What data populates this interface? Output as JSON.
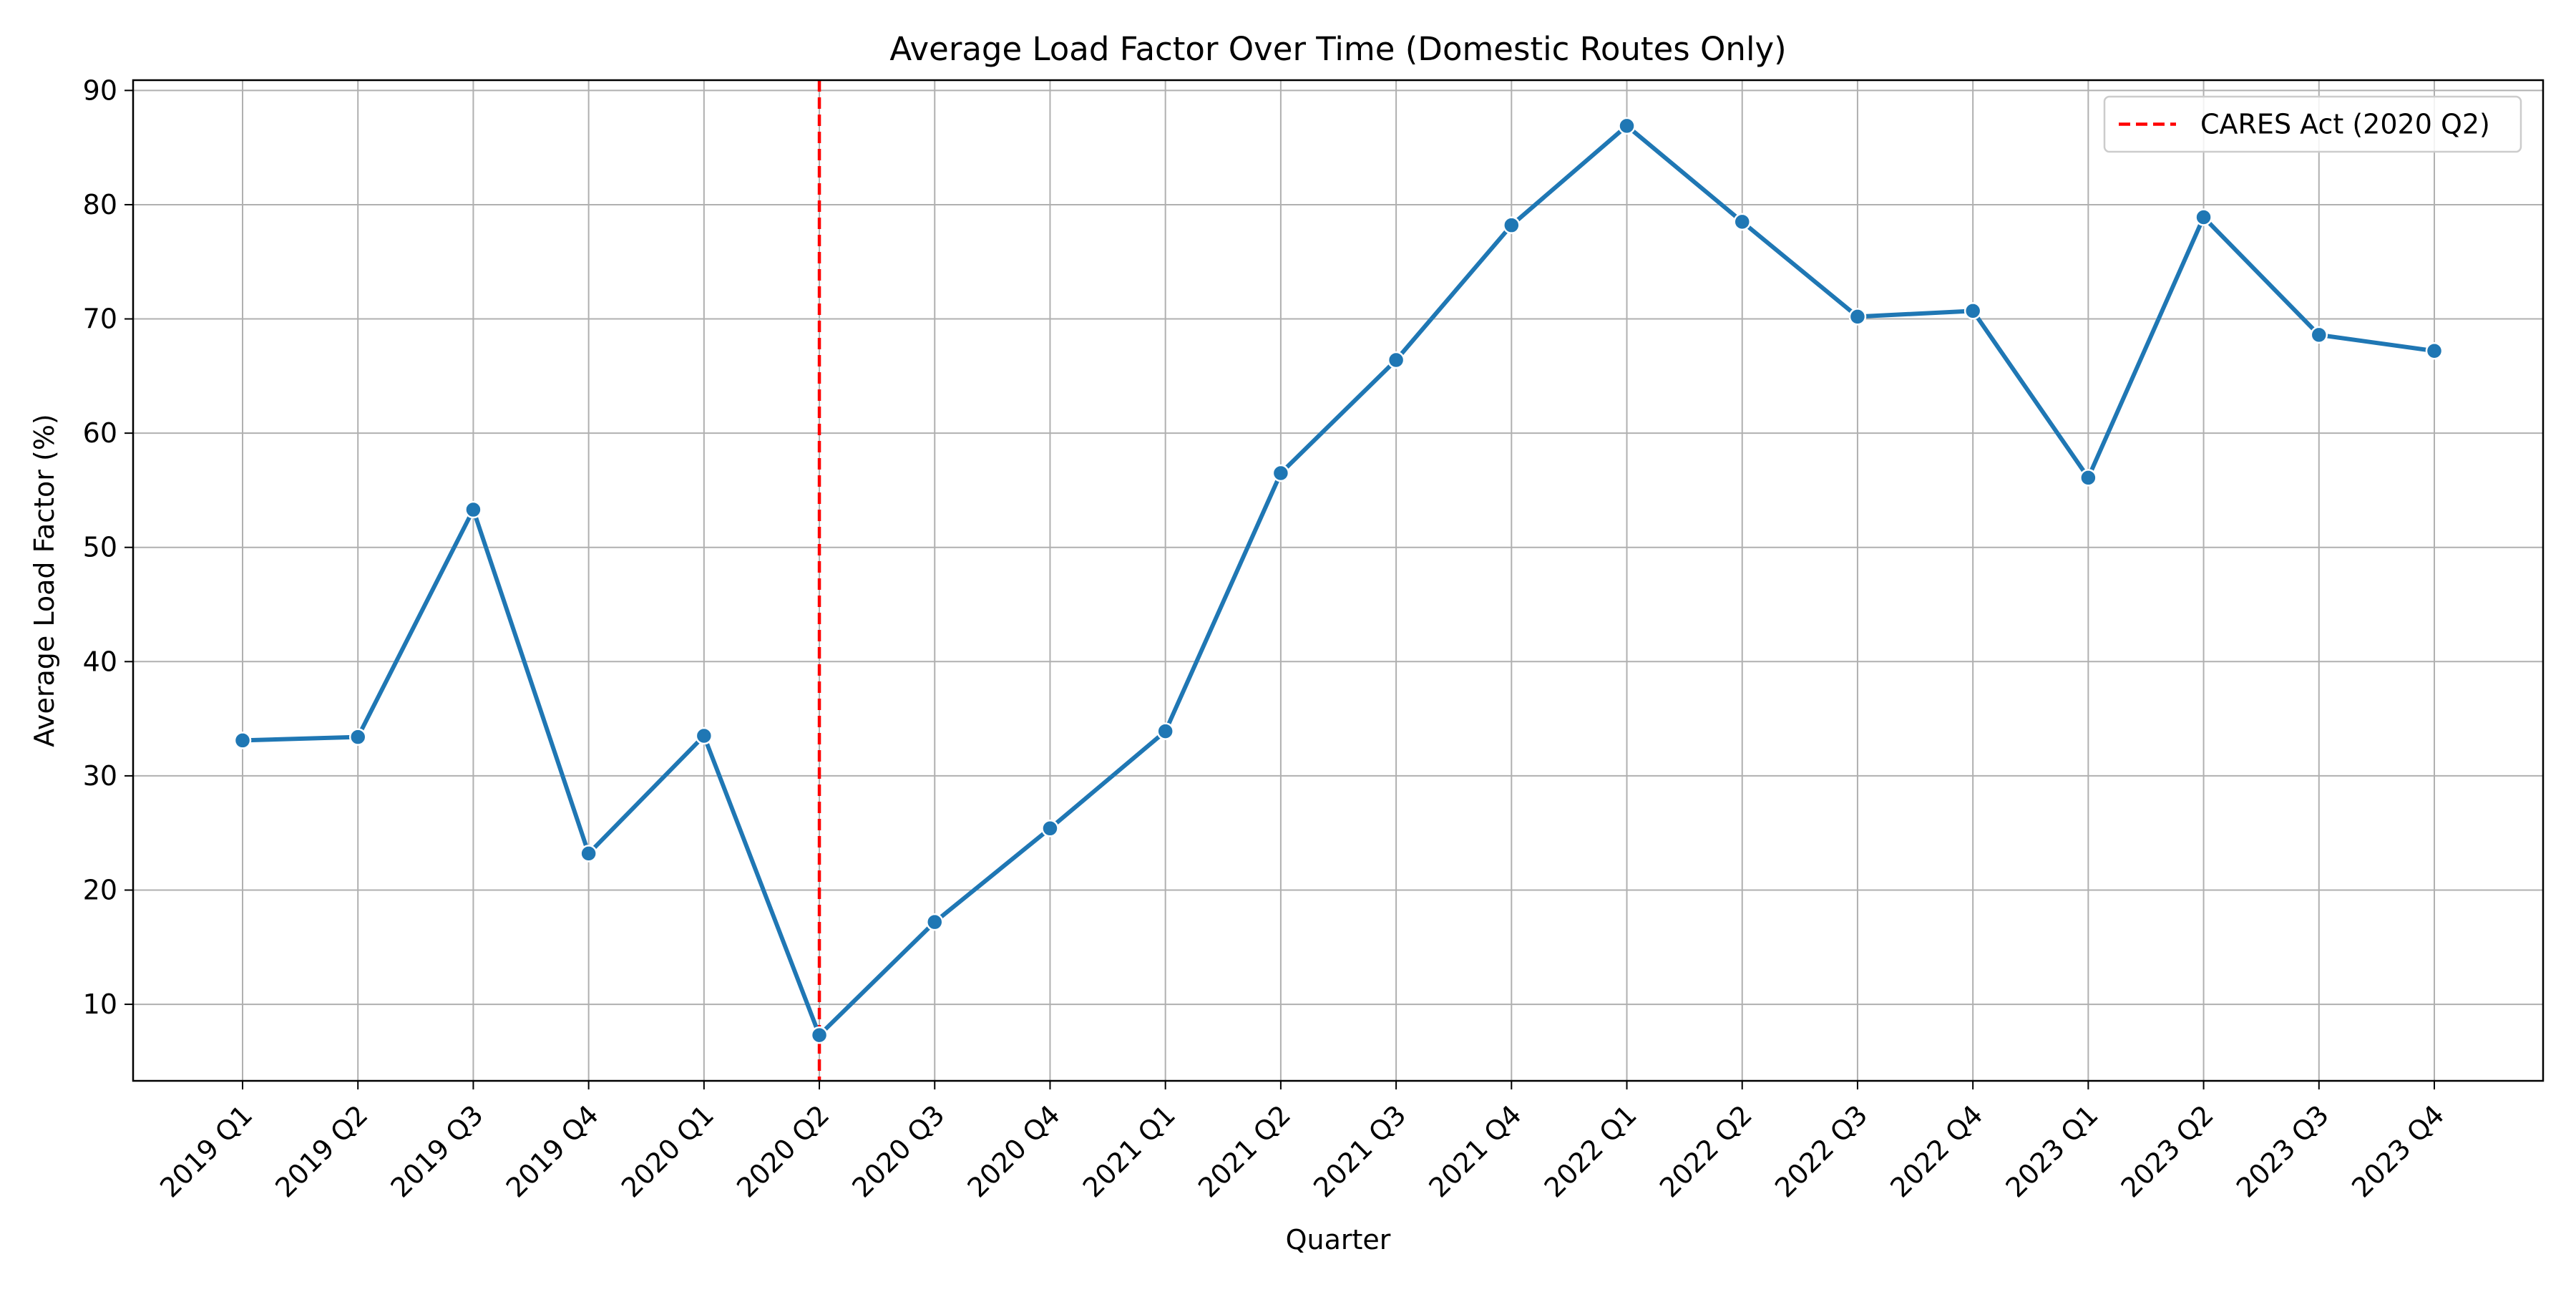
{
  "chart_data": {
    "type": "line",
    "title": "Average Load Factor Over Time (Domestic Routes Only)",
    "xlabel": "Quarter",
    "ylabel": "Average Load Factor (%)",
    "categories": [
      "2019 Q1",
      "2019 Q2",
      "2019 Q3",
      "2019 Q4",
      "2020 Q1",
      "2020 Q2",
      "2020 Q3",
      "2020 Q4",
      "2021 Q1",
      "2021 Q2",
      "2021 Q3",
      "2021 Q4",
      "2022 Q1",
      "2022 Q2",
      "2022 Q3",
      "2022 Q4",
      "2023 Q1",
      "2023 Q2",
      "2023 Q3",
      "2023 Q4"
    ],
    "series": [
      {
        "values": [
          33.1,
          33.4,
          53.3,
          23.2,
          33.5,
          7.3,
          17.2,
          25.4,
          33.9,
          56.5,
          66.4,
          78.2,
          86.9,
          78.5,
          70.2,
          70.7,
          56.1,
          78.9,
          68.6,
          67.2
        ],
        "color": "#1f77b4"
      }
    ],
    "ylim": [
      3.3,
      90.9
    ],
    "yticks": [
      10,
      20,
      30,
      40,
      50,
      60,
      70,
      80,
      90
    ],
    "grid": true,
    "legend": {
      "position": "top-right",
      "entries": [
        {
          "label": "CARES Act (2020 Q2)",
          "color": "#ff0000",
          "style": "dashed"
        }
      ]
    },
    "annotations": [
      {
        "type": "vertical-line",
        "at": "2020 Q2",
        "color": "#ff0000",
        "style": "dashed",
        "label": "CARES Act (2020 Q2)"
      }
    ]
  }
}
